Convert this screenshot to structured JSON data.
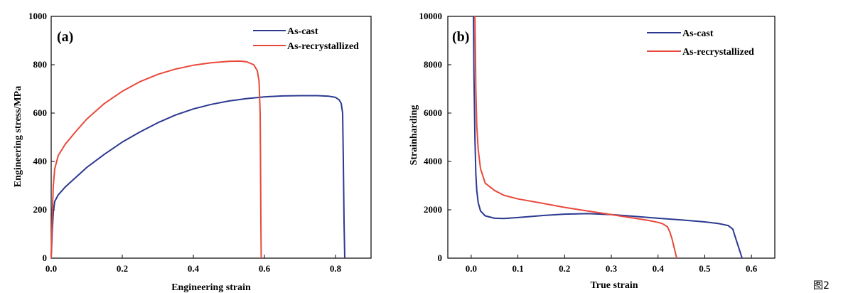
{
  "figure_caption": "图2",
  "chart_data": [
    {
      "type": "line",
      "panel_label": "(a)",
      "xlabel": "Engineering strain",
      "ylabel": "Engineering stress/MPa",
      "xlim": [
        0.0,
        0.9
      ],
      "ylim": [
        0,
        1000
      ],
      "xticks": [
        0.0,
        0.2,
        0.4,
        0.6,
        0.8
      ],
      "xtick_labels": [
        "0.0",
        "0.2",
        "0.4",
        "0.6",
        "0.8"
      ],
      "yticks": [
        0,
        200,
        400,
        600,
        800,
        1000
      ],
      "ytick_labels": [
        "0",
        "200",
        "400",
        "600",
        "800",
        "1000"
      ],
      "legend_position": "top-right",
      "series": [
        {
          "name": "As-cast",
          "color": "#2b3990",
          "x": [
            0,
            0.003,
            0.006,
            0.01,
            0.02,
            0.04,
            0.07,
            0.1,
            0.15,
            0.2,
            0.25,
            0.3,
            0.35,
            0.4,
            0.45,
            0.5,
            0.55,
            0.6,
            0.65,
            0.7,
            0.75,
            0.78,
            0.8,
            0.81,
            0.816,
            0.82,
            0.822,
            0.824,
            0.826
          ],
          "y": [
            0,
            110,
            190,
            235,
            262,
            295,
            335,
            375,
            430,
            480,
            522,
            560,
            592,
            617,
            636,
            650,
            660,
            667,
            671,
            672,
            672,
            670,
            665,
            655,
            640,
            600,
            400,
            150,
            0
          ]
        },
        {
          "name": "As-recrystallized",
          "color": "#e8493b",
          "x": [
            0,
            0.003,
            0.006,
            0.01,
            0.02,
            0.04,
            0.07,
            0.1,
            0.15,
            0.2,
            0.25,
            0.3,
            0.35,
            0.4,
            0.45,
            0.5,
            0.53,
            0.55,
            0.57,
            0.58,
            0.585,
            0.588,
            0.589,
            0.59,
            0.591
          ],
          "y": [
            0,
            180,
            300,
            370,
            425,
            472,
            525,
            575,
            640,
            690,
            730,
            760,
            782,
            798,
            808,
            814,
            815,
            812,
            800,
            775,
            730,
            600,
            400,
            150,
            0
          ]
        }
      ]
    },
    {
      "type": "line",
      "panel_label": "(b)",
      "xlabel": "True strain",
      "ylabel": "Strainharding",
      "xlim": [
        -0.05,
        0.65
      ],
      "ylim": [
        0,
        10000
      ],
      "xticks": [
        0.0,
        0.1,
        0.2,
        0.3,
        0.4,
        0.5,
        0.6
      ],
      "xtick_labels": [
        "0.0",
        "0.1",
        "0.2",
        "0.3",
        "0.4",
        "0.5",
        "0.6"
      ],
      "yticks": [
        0,
        2000,
        4000,
        6000,
        8000,
        10000
      ],
      "ytick_labels": [
        "0",
        "2000",
        "4000",
        "6000",
        "8000",
        "10000"
      ],
      "legend_position": "top-right",
      "series": [
        {
          "name": "As-cast",
          "color": "#2b3990",
          "x": [
            0.005,
            0.006,
            0.008,
            0.01,
            0.012,
            0.015,
            0.02,
            0.03,
            0.05,
            0.07,
            0.1,
            0.15,
            0.2,
            0.25,
            0.3,
            0.35,
            0.4,
            0.45,
            0.5,
            0.53,
            0.55,
            0.56,
            0.565,
            0.57,
            0.575,
            0.58
          ],
          "y": [
            10000,
            7500,
            5000,
            3500,
            2800,
            2300,
            1950,
            1750,
            1650,
            1640,
            1680,
            1760,
            1820,
            1840,
            1800,
            1730,
            1650,
            1580,
            1500,
            1430,
            1350,
            1200,
            900,
            600,
            300,
            0
          ]
        },
        {
          "name": "As-recrystallized",
          "color": "#e8493b",
          "x": [
            0.008,
            0.009,
            0.01,
            0.012,
            0.015,
            0.02,
            0.03,
            0.05,
            0.07,
            0.1,
            0.15,
            0.2,
            0.25,
            0.3,
            0.35,
            0.38,
            0.4,
            0.41,
            0.42,
            0.425,
            0.43,
            0.435,
            0.44
          ],
          "y": [
            10000,
            8500,
            7000,
            5500,
            4500,
            3700,
            3100,
            2800,
            2600,
            2450,
            2280,
            2100,
            1950,
            1800,
            1650,
            1560,
            1480,
            1420,
            1300,
            1100,
            800,
            400,
            0
          ]
        }
      ]
    }
  ]
}
